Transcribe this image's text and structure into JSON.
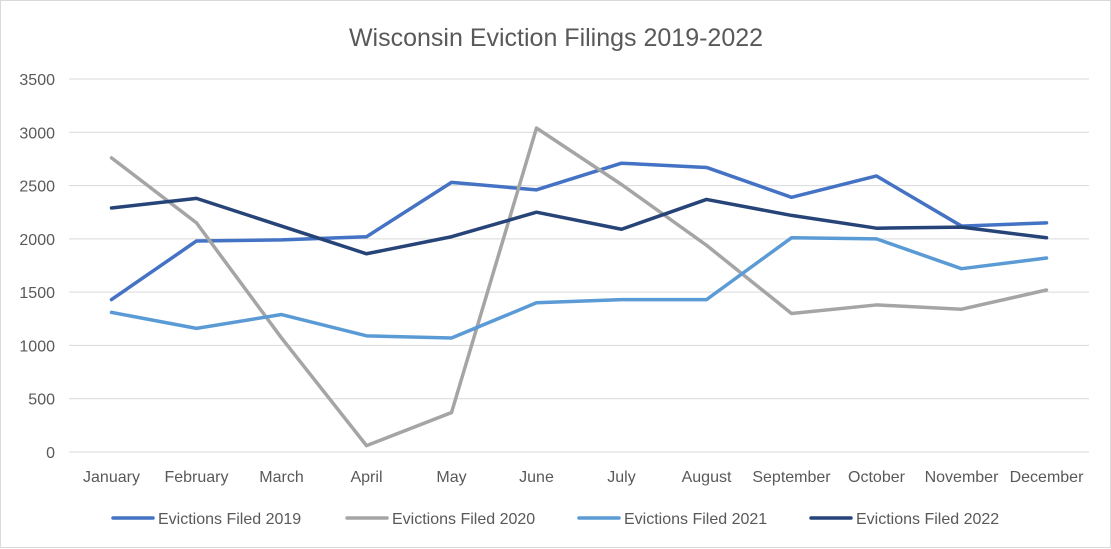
{
  "chart_data": {
    "type": "line",
    "title": "Wisconsin Eviction Filings 2019-2022",
    "xlabel": "",
    "ylabel": "",
    "ylim": [
      0,
      3500
    ],
    "yticks": [
      0,
      500,
      1000,
      1500,
      2000,
      2500,
      3000,
      3500
    ],
    "grid": true,
    "legend_position": "bottom",
    "categories": [
      "January",
      "February",
      "March",
      "April",
      "May",
      "June",
      "July",
      "August",
      "September",
      "October",
      "November",
      "December"
    ],
    "series": [
      {
        "name": "Evictions Filed 2019",
        "color": "#4472C4",
        "values": [
          1430,
          1980,
          1990,
          2020,
          2530,
          2460,
          2710,
          2670,
          2390,
          2590,
          2120,
          2150
        ]
      },
      {
        "name": "Evictions Filed 2020",
        "color": "#A5A5A5",
        "values": [
          2760,
          2150,
          1070,
          60,
          370,
          3040,
          2510,
          1940,
          1300,
          1380,
          1340,
          1520
        ]
      },
      {
        "name": "Evictions Filed 2021",
        "color": "#5B9BD5",
        "values": [
          1310,
          1160,
          1290,
          1090,
          1070,
          1400,
          1430,
          1430,
          2010,
          2000,
          1720,
          1820
        ]
      },
      {
        "name": "Evictions Filed 2022",
        "color": "#264478",
        "values": [
          2290,
          2380,
          2120,
          1860,
          2020,
          2250,
          2090,
          2370,
          2220,
          2100,
          2110,
          2010
        ]
      }
    ]
  }
}
